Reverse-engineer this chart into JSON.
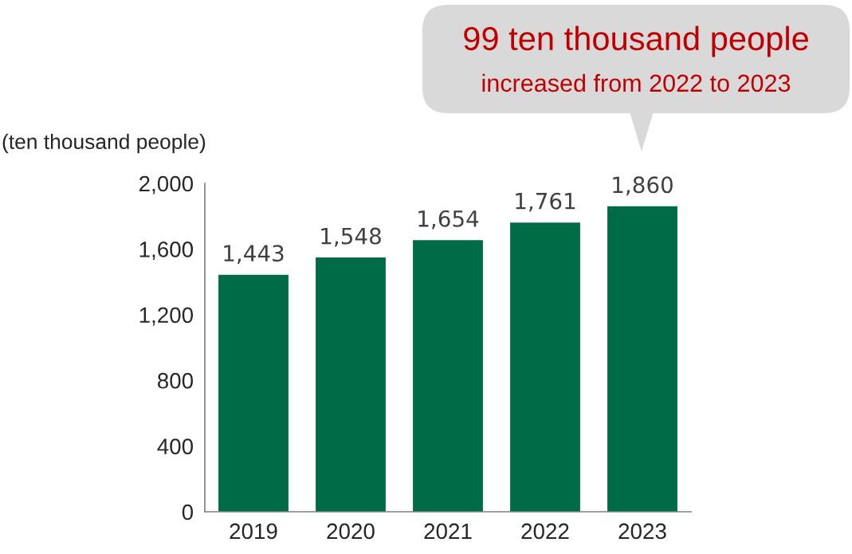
{
  "chart_data": {
    "type": "bar",
    "ylabel": "(ten thousand people)",
    "categories": [
      "2019",
      "2020",
      "2021",
      "2022",
      "2023"
    ],
    "values": [
      1443,
      1548,
      1654,
      1761,
      1860
    ],
    "value_labels": [
      "1,443",
      "1,548",
      "1,654",
      "1,761",
      "1,860"
    ],
    "color": "#006b47",
    "ylim": [
      0,
      2000
    ],
    "yticks": [
      0,
      400,
      800,
      {
        "value": 1200,
        "label": "1,200"
      },
      {
        "value": 1600,
        "label": "1,600"
      },
      {
        "value": 2000,
        "label": "2,000"
      }
    ],
    "grid": false,
    "legend": false,
    "annotations": [
      "99 ten thousand people",
      "increased from 2022 to 2023"
    ]
  }
}
